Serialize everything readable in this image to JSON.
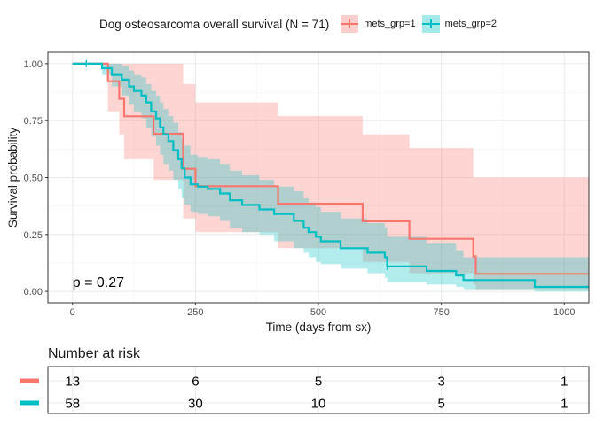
{
  "chart_data": {
    "type": "line",
    "legend": {
      "title": "Dog osteosarcoma overall survival (N = 71)",
      "placement": "top",
      "entries": [
        "mets_grp=1",
        "mets_grp=2"
      ]
    },
    "xlabel": "Time (days from sx)",
    "ylabel": "Survival probability",
    "xlim": [
      -50,
      1050
    ],
    "ylim": [
      -0.05,
      1.05
    ],
    "x_ticks": [
      "0",
      "250",
      "500",
      "750",
      "1000"
    ],
    "x_tick_values": [
      0,
      250,
      500,
      750,
      1000
    ],
    "y_ticks": [
      "0.00",
      "0.25",
      "0.50",
      "0.75",
      "1.00"
    ],
    "y_tick_values": [
      0,
      0.25,
      0.5,
      0.75,
      1.0
    ],
    "grid": true,
    "pvalue_text": "p = 0.27",
    "series": [
      {
        "name": "mets_grp=1",
        "color": "#F8766D",
        "band_color": "#F8766D",
        "steps": [
          [
            0,
            1.0
          ],
          [
            72,
            0.923
          ],
          [
            95,
            0.846
          ],
          [
            105,
            0.769
          ],
          [
            165,
            0.692
          ],
          [
            225,
            0.538
          ],
          [
            250,
            0.462
          ],
          [
            418,
            0.385
          ],
          [
            590,
            0.308
          ],
          [
            685,
            0.231
          ],
          [
            815,
            0.154
          ],
          [
            820,
            0.077
          ],
          [
            1050,
            0.077
          ]
        ],
        "lower": [
          [
            0,
            1.0
          ],
          [
            72,
            0.79
          ],
          [
            95,
            0.69
          ],
          [
            105,
            0.58
          ],
          [
            165,
            0.49
          ],
          [
            225,
            0.32
          ],
          [
            250,
            0.26
          ],
          [
            418,
            0.19
          ],
          [
            590,
            0.13
          ],
          [
            685,
            0.08
          ],
          [
            815,
            0.03
          ],
          [
            820,
            0.01
          ],
          [
            1050,
            0.01
          ]
        ],
        "upper": [
          [
            0,
            1.0
          ],
          [
            72,
            1.0
          ],
          [
            105,
            1.0
          ],
          [
            165,
            1.0
          ],
          [
            225,
            0.91
          ],
          [
            250,
            0.83
          ],
          [
            418,
            0.77
          ],
          [
            590,
            0.69
          ],
          [
            685,
            0.63
          ],
          [
            815,
            0.5
          ],
          [
            820,
            0.5
          ],
          [
            1050,
            0.5
          ]
        ],
        "censor_x": []
      },
      {
        "name": "mets_grp=2",
        "color": "#00BFC4",
        "band_color": "#00BFC4",
        "steps": [
          [
            0,
            1.0
          ],
          [
            28,
            1.0
          ],
          [
            60,
            0.98
          ],
          [
            80,
            0.95
          ],
          [
            100,
            0.93
          ],
          [
            115,
            0.9
          ],
          [
            125,
            0.88
          ],
          [
            140,
            0.86
          ],
          [
            150,
            0.83
          ],
          [
            160,
            0.79
          ],
          [
            170,
            0.76
          ],
          [
            178,
            0.72
          ],
          [
            185,
            0.69
          ],
          [
            195,
            0.66
          ],
          [
            205,
            0.62
          ],
          [
            215,
            0.58
          ],
          [
            222,
            0.54
          ],
          [
            228,
            0.5
          ],
          [
            240,
            0.47
          ],
          [
            255,
            0.46
          ],
          [
            275,
            0.45
          ],
          [
            300,
            0.43
          ],
          [
            320,
            0.4
          ],
          [
            345,
            0.38
          ],
          [
            380,
            0.36
          ],
          [
            410,
            0.34
          ],
          [
            450,
            0.31
          ],
          [
            470,
            0.28
          ],
          [
            480,
            0.26
          ],
          [
            495,
            0.24
          ],
          [
            505,
            0.22
          ],
          [
            545,
            0.19
          ],
          [
            600,
            0.17
          ],
          [
            635,
            0.15
          ],
          [
            640,
            0.11
          ],
          [
            720,
            0.09
          ],
          [
            780,
            0.07
          ],
          [
            795,
            0.05
          ],
          [
            940,
            0.02
          ],
          [
            1050,
            0.02
          ]
        ],
        "lower": [
          [
            0,
            1.0
          ],
          [
            60,
            0.95
          ],
          [
            80,
            0.9
          ],
          [
            100,
            0.86
          ],
          [
            115,
            0.82
          ],
          [
            125,
            0.79
          ],
          [
            140,
            0.76
          ],
          [
            150,
            0.72
          ],
          [
            160,
            0.68
          ],
          [
            170,
            0.64
          ],
          [
            178,
            0.6
          ],
          [
            185,
            0.56
          ],
          [
            195,
            0.53
          ],
          [
            205,
            0.49
          ],
          [
            215,
            0.45
          ],
          [
            222,
            0.41
          ],
          [
            228,
            0.38
          ],
          [
            240,
            0.35
          ],
          [
            255,
            0.34
          ],
          [
            275,
            0.33
          ],
          [
            300,
            0.31
          ],
          [
            320,
            0.28
          ],
          [
            345,
            0.26
          ],
          [
            380,
            0.25
          ],
          [
            410,
            0.22
          ],
          [
            450,
            0.19
          ],
          [
            470,
            0.17
          ],
          [
            480,
            0.15
          ],
          [
            495,
            0.13
          ],
          [
            505,
            0.12
          ],
          [
            545,
            0.1
          ],
          [
            600,
            0.08
          ],
          [
            635,
            0.06
          ],
          [
            640,
            0.04
          ],
          [
            720,
            0.03
          ],
          [
            780,
            0.02
          ],
          [
            795,
            0.01
          ],
          [
            940,
            0.0
          ],
          [
            1050,
            0.0
          ]
        ],
        "upper": [
          [
            0,
            1.0
          ],
          [
            60,
            1.0
          ],
          [
            80,
            1.0
          ],
          [
            100,
            0.99
          ],
          [
            115,
            0.97
          ],
          [
            125,
            0.95
          ],
          [
            140,
            0.94
          ],
          [
            150,
            0.91
          ],
          [
            160,
            0.88
          ],
          [
            170,
            0.86
          ],
          [
            178,
            0.83
          ],
          [
            185,
            0.8
          ],
          [
            195,
            0.77
          ],
          [
            205,
            0.74
          ],
          [
            215,
            0.7
          ],
          [
            222,
            0.67
          ],
          [
            228,
            0.64
          ],
          [
            240,
            0.6
          ],
          [
            255,
            0.59
          ],
          [
            275,
            0.58
          ],
          [
            300,
            0.56
          ],
          [
            320,
            0.53
          ],
          [
            345,
            0.51
          ],
          [
            380,
            0.49
          ],
          [
            410,
            0.46
          ],
          [
            450,
            0.44
          ],
          [
            470,
            0.41
          ],
          [
            480,
            0.39
          ],
          [
            495,
            0.37
          ],
          [
            505,
            0.35
          ],
          [
            545,
            0.32
          ],
          [
            600,
            0.3
          ],
          [
            635,
            0.28
          ],
          [
            640,
            0.24
          ],
          [
            720,
            0.21
          ],
          [
            780,
            0.18
          ],
          [
            795,
            0.15
          ],
          [
            940,
            0.15
          ],
          [
            1050,
            0.15
          ]
        ],
        "censor_x": [
          28,
          640
        ]
      }
    ],
    "risk_table": {
      "title": "Number at risk",
      "times": [
        0,
        250,
        500,
        750,
        1000
      ],
      "rows": [
        {
          "name": "mets_grp=1",
          "color": "#F8766D",
          "values": [
            "13",
            "6",
            "5",
            "3",
            "1"
          ]
        },
        {
          "name": "mets_grp=2",
          "color": "#00BFC4",
          "values": [
            "58",
            "30",
            "10",
            "5",
            "1"
          ]
        }
      ]
    }
  }
}
